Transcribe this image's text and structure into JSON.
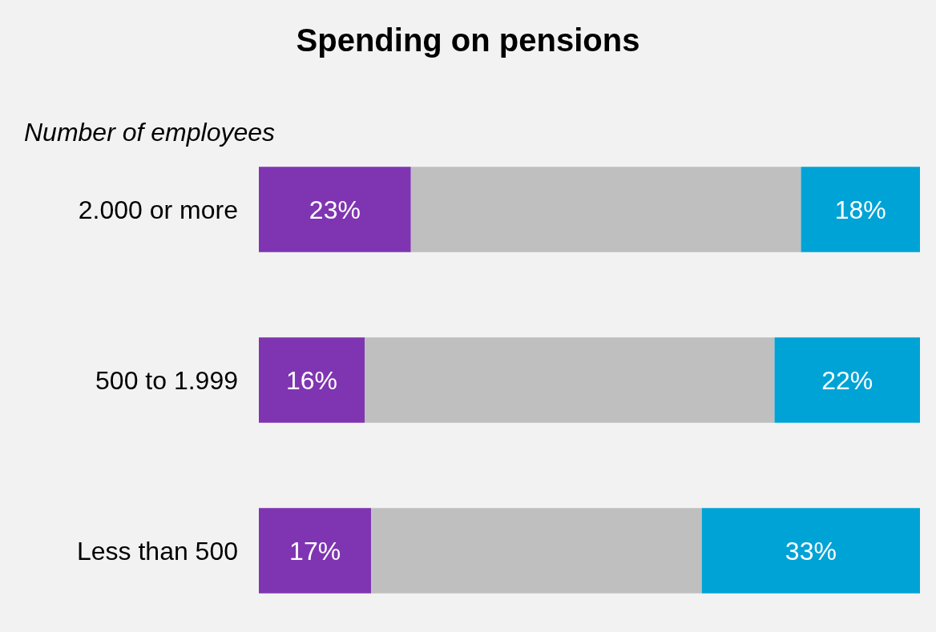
{
  "chart_data": {
    "type": "bar",
    "orientation": "horizontal",
    "stacked": true,
    "title": "Spending on pensions",
    "ylabel": "Number of employees",
    "categories": [
      "2.000 or more",
      "500 to 1.999",
      "Less than 500"
    ],
    "xlim": [
      0,
      100
    ],
    "tick_labels": "y",
    "series": [
      {
        "color": "#7f35b2",
        "values": [
          23,
          16,
          17
        ],
        "value_labels": [
          "23%",
          "16%",
          "17%"
        ]
      },
      {
        "color": "#bfbfbf",
        "values": [
          59,
          62,
          50
        ],
        "value_labels": [
          null,
          null,
          null
        ]
      },
      {
        "color": "#00a3d6",
        "values": [
          18,
          22,
          33
        ],
        "value_labels": [
          "18%",
          "22%",
          "33%"
        ]
      }
    ]
  }
}
